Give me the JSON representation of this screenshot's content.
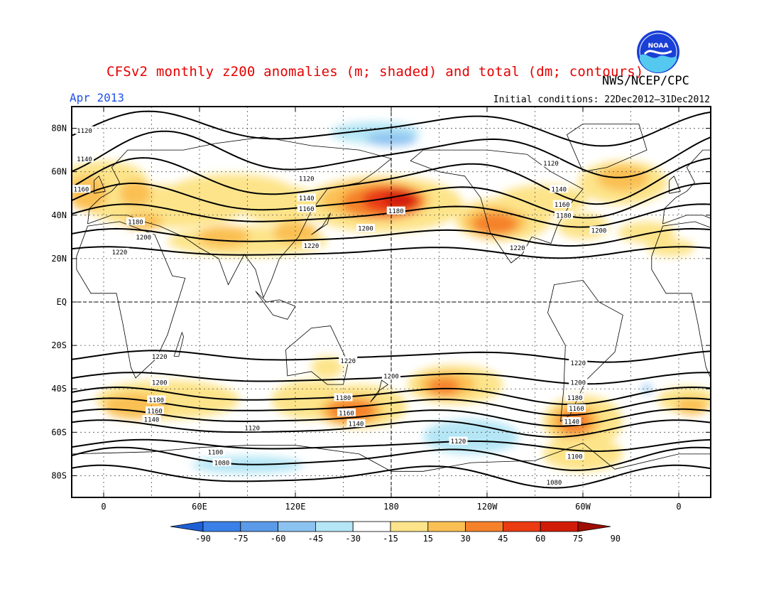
{
  "title": "CFSv2 monthly z200 anomalies (m; shaded) and total (dm; contours)",
  "agency": "NWS/NCEP/CPC",
  "logo_text": "NOAA",
  "month": "Apr 2013",
  "initial_conditions": "Initial conditions: 22Dec2012–31Dec2012",
  "lat_labels": [
    "80N",
    "60N",
    "40N",
    "20N",
    "EQ",
    "20S",
    "40S",
    "60S",
    "80S"
  ],
  "lon_labels": [
    "0",
    "60E",
    "120E",
    "180",
    "120W",
    "60W",
    "0"
  ],
  "colorbar": {
    "labels": [
      "-90",
      "-75",
      "-60",
      "-45",
      "-30",
      "-15",
      "15",
      "30",
      "45",
      "60",
      "75",
      "90"
    ],
    "colors": [
      "#1f5fd4",
      "#3a80e8",
      "#5a9ae8",
      "#8cc2f0",
      "#b5e6f5",
      "#ffffff",
      "#fde48a",
      "#fbc053",
      "#f5822a",
      "#ea3b12",
      "#d11c08",
      "#9e0c04"
    ]
  },
  "contour_labels": [
    {
      "text": "1120",
      "lat": 79,
      "lon": -12
    },
    {
      "text": "1140",
      "lat": 66,
      "lon": -12
    },
    {
      "text": "1160",
      "lat": 52,
      "lon": -14
    },
    {
      "text": "1180",
      "lat": 37,
      "lon": 20
    },
    {
      "text": "1200",
      "lat": 30,
      "lon": 25
    },
    {
      "text": "1220",
      "lat": 23,
      "lon": 10
    },
    {
      "text": "1120",
      "lat": 57,
      "lon": 127
    },
    {
      "text": "1140",
      "lat": 48,
      "lon": 127
    },
    {
      "text": "1160",
      "lat": 43,
      "lon": 127
    },
    {
      "text": "1180",
      "lat": 42,
      "lon": 183
    },
    {
      "text": "1200",
      "lat": 34,
      "lon": 164
    },
    {
      "text": "1220",
      "lat": 26,
      "lon": 130
    },
    {
      "text": "1120",
      "lat": 64,
      "lon": 280
    },
    {
      "text": "1140",
      "lat": 52,
      "lon": 285
    },
    {
      "text": "1160",
      "lat": 45,
      "lon": 287
    },
    {
      "text": "1180",
      "lat": 40,
      "lon": 288
    },
    {
      "text": "1200",
      "lat": 33,
      "lon": 310
    },
    {
      "text": "1220",
      "lat": 25,
      "lon": 259
    },
    {
      "text": "1220",
      "lat": -25,
      "lon": 35
    },
    {
      "text": "1200",
      "lat": -37,
      "lon": 35
    },
    {
      "text": "1180",
      "lat": -45,
      "lon": 33
    },
    {
      "text": "1160",
      "lat": -50,
      "lon": 32
    },
    {
      "text": "1140",
      "lat": -54,
      "lon": 30
    },
    {
      "text": "1120",
      "lat": -58,
      "lon": 93
    },
    {
      "text": "1100",
      "lat": -69,
      "lon": 70
    },
    {
      "text": "1080",
      "lat": -74,
      "lon": 74
    },
    {
      "text": "1220",
      "lat": -27,
      "lon": 153
    },
    {
      "text": "1200",
      "lat": -34,
      "lon": 180
    },
    {
      "text": "1180",
      "lat": -44,
      "lon": 150
    },
    {
      "text": "1160",
      "lat": -51,
      "lon": 152
    },
    {
      "text": "1140",
      "lat": -56,
      "lon": 158
    },
    {
      "text": "1120",
      "lat": -64,
      "lon": 222
    },
    {
      "text": "1220",
      "lat": -28,
      "lon": 297
    },
    {
      "text": "1200",
      "lat": -37,
      "lon": 297
    },
    {
      "text": "1180",
      "lat": -44,
      "lon": 295
    },
    {
      "text": "1160",
      "lat": -49,
      "lon": 296
    },
    {
      "text": "1140",
      "lat": -55,
      "lon": 293
    },
    {
      "text": "1100",
      "lat": -71,
      "lon": 295
    },
    {
      "text": "1080",
      "lat": -83,
      "lon": 282
    }
  ]
}
